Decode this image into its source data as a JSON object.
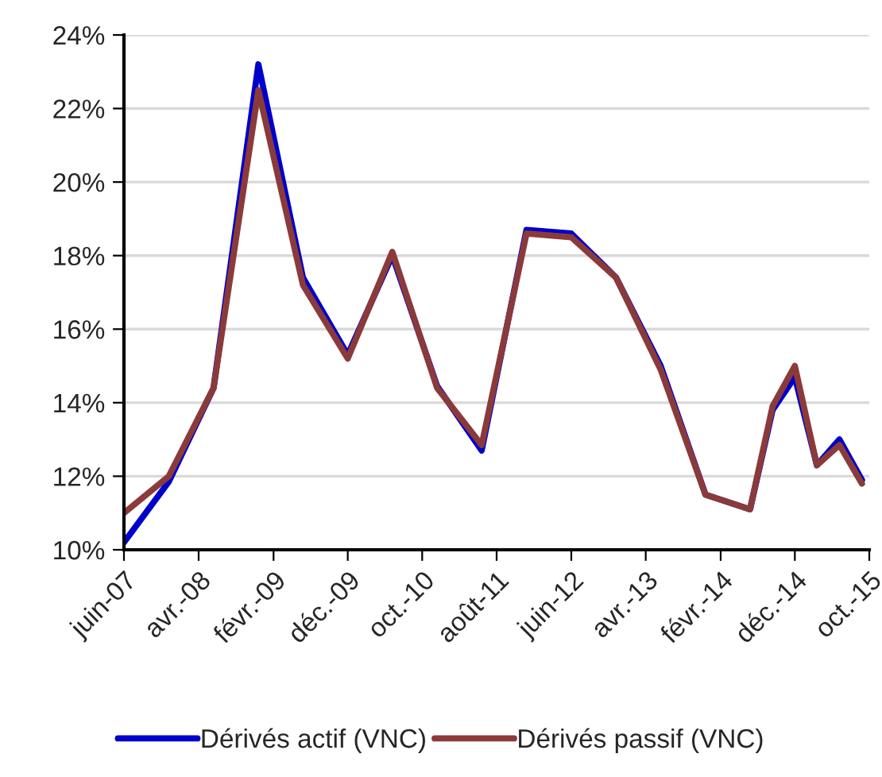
{
  "chart_data": {
    "type": "line",
    "x": [
      "2007-06",
      "2007-12",
      "2008-06",
      "2008-12",
      "2009-06",
      "2009-12",
      "2010-06",
      "2010-12",
      "2011-06",
      "2011-12",
      "2012-06",
      "2012-12",
      "2013-06",
      "2013-12",
      "2014-06",
      "2014-09",
      "2014-12",
      "2015-03",
      "2015-06",
      "2015-09"
    ],
    "series": [
      {
        "name": "Dérivés actif (VNC)",
        "color": "#0000cc",
        "values": [
          10.2,
          11.85,
          14.4,
          23.2,
          17.4,
          15.3,
          18.0,
          14.45,
          12.7,
          18.7,
          18.6,
          17.4,
          15.0,
          11.5,
          11.1,
          13.8,
          14.7,
          12.3,
          13.0,
          11.9
        ]
      },
      {
        "name": "Dérivés passif (VNC)",
        "color": "#8b3a3a",
        "values": [
          11.0,
          12.0,
          14.4,
          22.5,
          17.2,
          15.2,
          18.1,
          14.4,
          12.85,
          18.6,
          18.5,
          17.4,
          14.9,
          11.5,
          11.1,
          13.9,
          15.0,
          12.3,
          12.85,
          11.8
        ]
      }
    ],
    "xlim": [
      "2007-06",
      "2015-10"
    ],
    "xticks": [
      {
        "value": "2007-06",
        "label": "juin-07"
      },
      {
        "value": "2008-04",
        "label": "avr.-08"
      },
      {
        "value": "2009-02",
        "label": "févr.-09"
      },
      {
        "value": "2009-12",
        "label": "déc.-09"
      },
      {
        "value": "2010-10",
        "label": "oct.-10"
      },
      {
        "value": "2011-08",
        "label": "août-11"
      },
      {
        "value": "2012-06",
        "label": "juin-12"
      },
      {
        "value": "2013-04",
        "label": "avr.-13"
      },
      {
        "value": "2014-02",
        "label": "févr.-14"
      },
      {
        "value": "2014-12",
        "label": "déc.-14"
      },
      {
        "value": "2015-10",
        "label": "oct.-15"
      }
    ],
    "ylim": [
      10,
      24
    ],
    "yticks": [
      {
        "value": 10,
        "label": "10%"
      },
      {
        "value": 12,
        "label": "12%"
      },
      {
        "value": 14,
        "label": "14%"
      },
      {
        "value": 16,
        "label": "16%"
      },
      {
        "value": 18,
        "label": "18%"
      },
      {
        "value": 20,
        "label": "20%"
      },
      {
        "value": 22,
        "label": "22%"
      },
      {
        "value": 24,
        "label": "24%"
      }
    ],
    "grid": "y",
    "legend": "bottom",
    "marker": "none",
    "line_style": "solid"
  }
}
